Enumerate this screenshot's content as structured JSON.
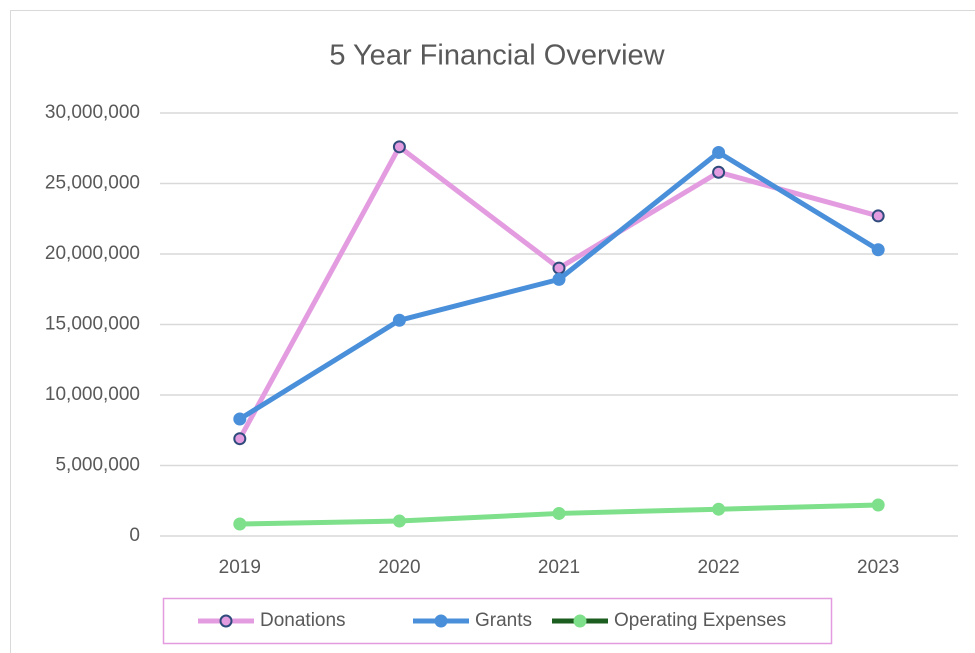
{
  "chart_data": {
    "type": "line",
    "title": "5 Year Financial Overview",
    "categories": [
      "2019",
      "2020",
      "2021",
      "2022",
      "2023"
    ],
    "series": [
      {
        "name": "Donations",
        "color": "#e49ce0",
        "marker_edge": "#2f4b7c",
        "values": [
          6900000,
          27600000,
          19000000,
          25800000,
          22700000
        ]
      },
      {
        "name": "Grants",
        "color": "#4a8fda",
        "values": [
          8300000,
          15300000,
          18200000,
          27200000,
          20300000
        ]
      },
      {
        "name": "Operating Expenses",
        "color": "#7ee08a",
        "legend_line_color": "#1c5e1f",
        "values": [
          850000,
          1060000,
          1600000,
          1900000,
          2200000
        ]
      }
    ],
    "ylim": [
      0,
      30000000
    ],
    "yticks": [
      0,
      {
        "value": 5000000,
        "label": "5,000,000"
      },
      {
        "value": 10000000,
        "label": "10,000,000"
      },
      {
        "value": 15000000,
        "label": "15,000,000"
      },
      {
        "value": 20000000,
        "label": "20,000,000"
      },
      {
        "value": 25000000,
        "label": "25,000,000"
      },
      {
        "value": 30000000,
        "label": "30,000,000"
      }
    ],
    "grid": true,
    "legend": "bottom"
  }
}
